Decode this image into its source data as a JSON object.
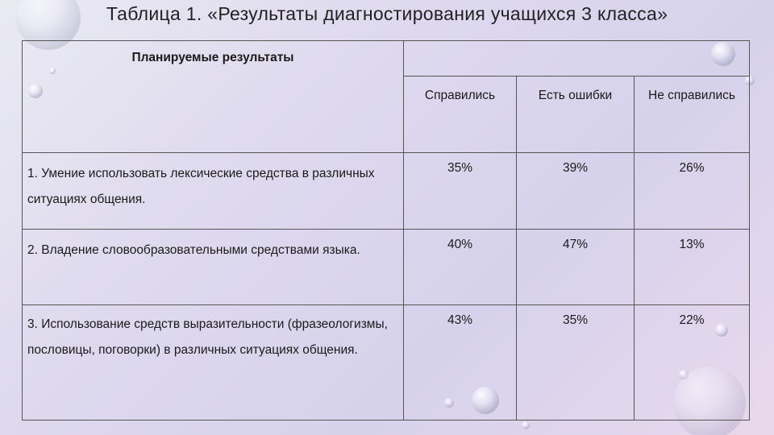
{
  "title": "Таблица 1. «Результаты диагностирования учащихся 3 класса»",
  "table": {
    "header": {
      "planned_results": "Планируемые результаты",
      "columns": [
        "Справились",
        "Есть ошибки",
        "Не справились"
      ]
    },
    "rows": [
      {
        "label": "1. Умение использовать лексические средства в различных ситуациях общения.",
        "values": [
          "35%",
          "39%",
          "26%"
        ]
      },
      {
        "label": "2. Владение словообразовательными средствами языка.",
        "values": [
          "40%",
          "47%",
          "13%"
        ]
      },
      {
        "label": "3. Использование средств выразительности (фразеологизмы, пословицы, поговорки) в различных ситуациях общения.",
        "values": [
          "43%",
          "35%",
          "22%"
        ]
      }
    ]
  }
}
